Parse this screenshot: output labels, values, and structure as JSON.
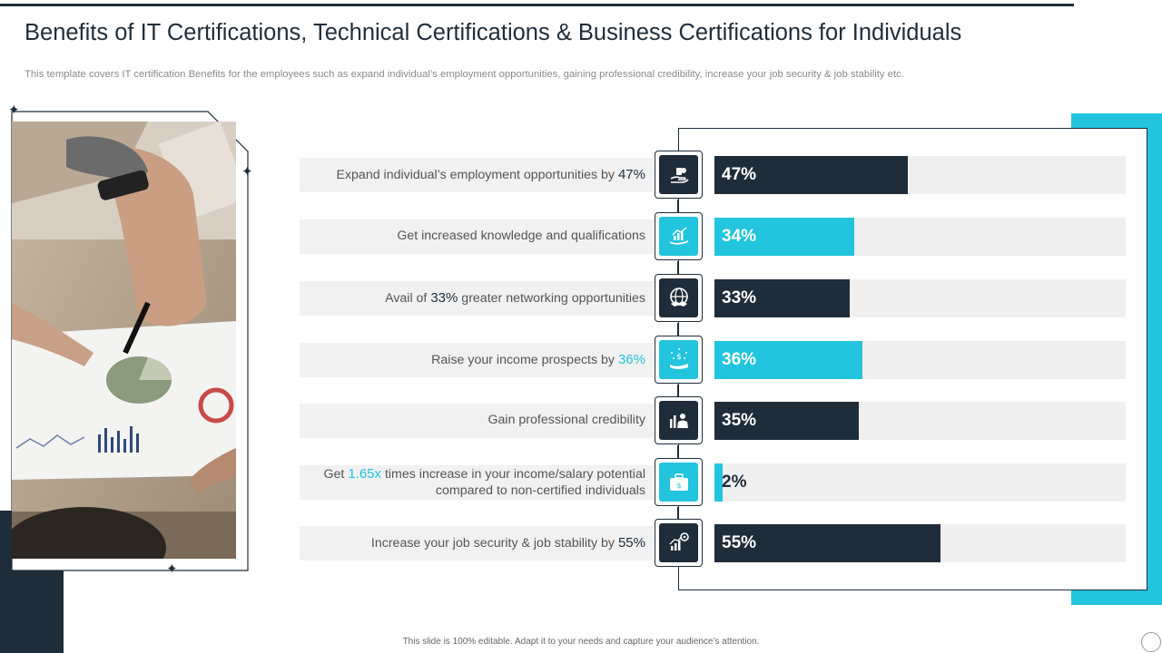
{
  "header": {
    "title": "Benefits of IT Certifications, Technical Certifications & Business Certifications for Individuals",
    "subtitle": "This template covers IT certification Benefits for the employees such as expand individual’s employment opportunities, gaining professional credibility, increase your job security & job stability etc."
  },
  "footer": {
    "text": "This slide is 100% editable. Adapt it to your needs and capture your audience’s attention."
  },
  "colors": {
    "dark": "#1f2d3a",
    "cyan": "#23c4dd",
    "track": "#efefef"
  },
  "chart_data": {
    "type": "bar",
    "orientation": "horizontal",
    "xlim": [
      0,
      100
    ],
    "grid": false,
    "categories": [
      "Expand individual’s employment opportunities by 47%",
      "Get increased knowledge and qualifications",
      "Avail of 33% greater networking opportunities",
      "Raise your income prospects by 36%",
      "Gain professional credibility",
      "Get 1.65x times increase in your income/salary potential compared to non-certified individuals",
      "Increase your job security & job stability by 55%"
    ],
    "values": [
      47,
      34,
      33,
      36,
      35,
      2,
      55
    ],
    "value_labels": [
      "47%",
      "34%",
      "33%",
      "36%",
      "35%",
      "2%",
      "55%"
    ],
    "bar_colors": [
      "dark",
      "cyan",
      "dark",
      "cyan",
      "dark",
      "cyan",
      "dark"
    ]
  },
  "rows": [
    {
      "pre": "Expand individual’s employment opportunities by ",
      "hl": "47%",
      "post": "",
      "line2": "",
      "hl_color": "dark",
      "icon": "money-hand-icon"
    },
    {
      "pre": "Get increased knowledge and qualifications",
      "hl": "",
      "post": "",
      "line2": "",
      "hl_color": "dark",
      "icon": "growth-chart-hand-icon"
    },
    {
      "pre": "Avail of ",
      "hl": "33%",
      "post": " greater networking opportunities",
      "line2": "",
      "hl_color": "dark",
      "icon": "globe-handshake-icon"
    },
    {
      "pre": "Raise your income prospects by ",
      "hl": "36%",
      "post": "",
      "line2": "",
      "hl_color": "cyan",
      "icon": "dollar-hand-icon"
    },
    {
      "pre": "Gain professional credibility",
      "hl": "",
      "post": "",
      "line2": "",
      "hl_color": "dark",
      "icon": "businessman-chart-icon"
    },
    {
      "pre": "Get ",
      "hl": "1.65x",
      "post": " times increase in your income/salary potential",
      "line2": "compared to non-certified individuals",
      "hl_color": "cyan",
      "icon": "money-briefcase-icon"
    },
    {
      "pre": "Increase your job security & job stability by ",
      "hl": "55%",
      "post": "",
      "line2": "",
      "hl_color": "dark",
      "icon": "gear-growth-chart-icon"
    }
  ]
}
